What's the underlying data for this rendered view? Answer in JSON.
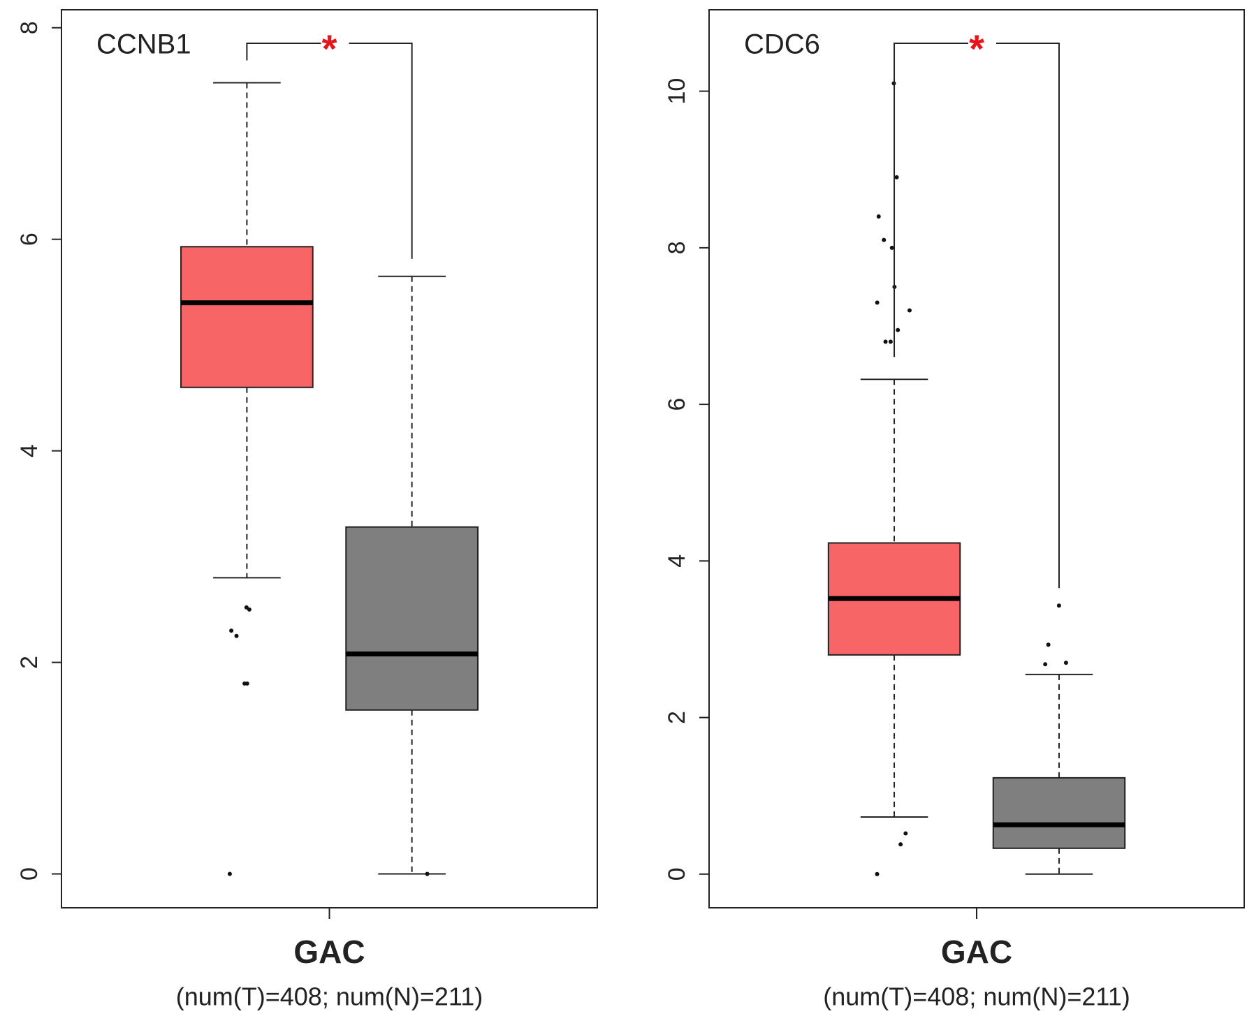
{
  "chart_data": [
    {
      "type": "box",
      "title": "CCNB1",
      "xlabel": "GAC",
      "subtitle": "(num(T)=408; num(N)=211)",
      "annotation": "*",
      "ylim": [
        -0.32,
        8.17
      ],
      "yticks": [
        0,
        2,
        4,
        6,
        8
      ],
      "series": [
        {
          "color": "#f76566",
          "whislo": 2.8,
          "q1": 4.6,
          "med": 5.4,
          "q3": 5.93,
          "whishi": 7.48,
          "outliers": [
            2.52,
            2.5,
            2.3,
            2.25,
            1.8,
            1.8,
            0
          ]
        },
        {
          "color": "#7f7f7f",
          "whislo": 0,
          "q1": 1.55,
          "med": 2.08,
          "q3": 3.28,
          "whishi": 5.65,
          "outliers": [
            0
          ]
        }
      ]
    },
    {
      "type": "box",
      "title": "CDC6",
      "xlabel": "GAC",
      "subtitle": "(num(T)=408; num(N)=211)",
      "annotation": "*",
      "ylim": [
        -0.43,
        11.04
      ],
      "yticks": [
        0,
        2,
        4,
        6,
        8,
        10
      ],
      "series": [
        {
          "color": "#f76566",
          "whislo": 0.73,
          "q1": 2.8,
          "med": 3.52,
          "q3": 4.23,
          "whishi": 6.32,
          "outliers": [
            10.1,
            8.9,
            8.4,
            8.1,
            8.0,
            7.5,
            7.3,
            7.2,
            6.95,
            6.8,
            6.8,
            0.52,
            0.38,
            0
          ]
        },
        {
          "color": "#7f7f7f",
          "whislo": 0,
          "q1": 0.33,
          "med": 0.63,
          "q3": 1.23,
          "whishi": 2.55,
          "outliers": [
            3.43,
            2.93,
            2.7,
            2.68
          ]
        }
      ]
    }
  ]
}
